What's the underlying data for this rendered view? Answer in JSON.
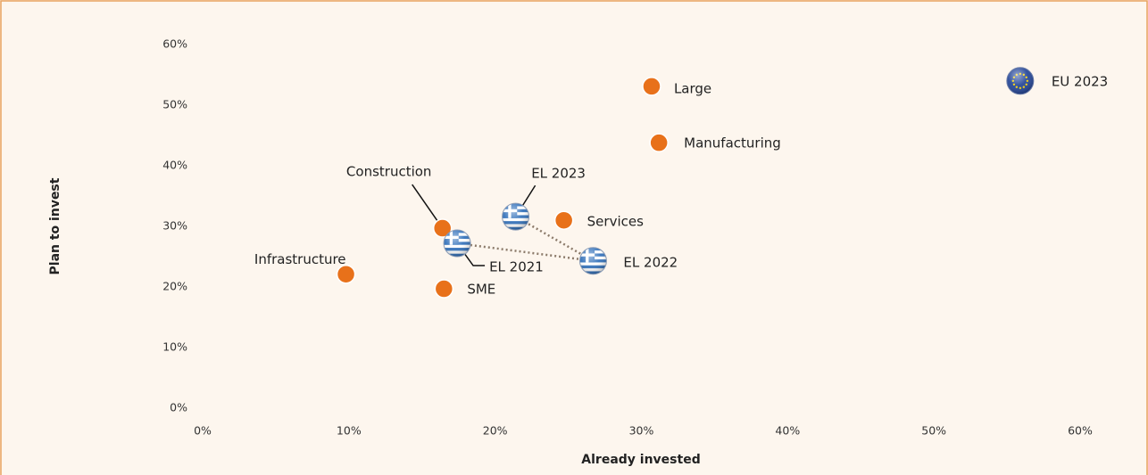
{
  "chart_data": {
    "type": "scatter",
    "x_label": "Already invested",
    "y_label": "Plan to invest",
    "xlim": [
      0,
      60
    ],
    "ylim": [
      0,
      60
    ],
    "xticks": [
      {
        "value": 0,
        "label": "0%"
      },
      {
        "value": 10,
        "label": "10%"
      },
      {
        "value": 20,
        "label": "20%"
      },
      {
        "value": 30,
        "label": "30%"
      },
      {
        "value": 40,
        "label": "40%"
      },
      {
        "value": 50,
        "label": "50%"
      },
      {
        "value": 60,
        "label": "60%"
      }
    ],
    "yticks": [
      {
        "value": 0,
        "label": "0%"
      },
      {
        "value": 10,
        "label": "10%"
      },
      {
        "value": 20,
        "label": "20%"
      },
      {
        "value": 30,
        "label": "30%"
      },
      {
        "value": 40,
        "label": "40%"
      },
      {
        "value": 50,
        "label": "50%"
      },
      {
        "value": 60,
        "label": "60%"
      }
    ],
    "series": [
      {
        "color": "#e8711a",
        "marker": "dot",
        "labels": [
          "Large",
          "Manufacturing",
          "Services",
          "Construction",
          "Infrastructure",
          "SME"
        ],
        "x": [
          30.7,
          31.2,
          24.7,
          16.4,
          9.8,
          16.5
        ],
        "values": [
          53.1,
          43.8,
          31.0,
          29.7,
          22.1,
          19.7
        ]
      },
      {
        "color": "#2b6cb8",
        "marker": "flag-el",
        "line_style": "dotted",
        "labels": [
          "EL 2021",
          "EL 2022",
          "EL 2023"
        ],
        "x": [
          17.4,
          26.7,
          21.4
        ],
        "values": [
          27.2,
          24.3,
          31.6
        ]
      },
      {
        "color": "#1c3f94",
        "marker": "flag-eu",
        "labels": [
          "EU 2023"
        ],
        "x": [
          55.9
        ],
        "values": [
          54.0
        ]
      }
    ]
  }
}
